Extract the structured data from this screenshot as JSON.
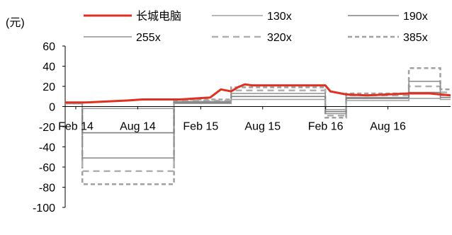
{
  "chart_data": {
    "type": "line",
    "unit_label": "(元)",
    "x_tick_labels": [
      "Feb 14",
      "Aug 14",
      "Feb 15",
      "Aug 15",
      "Feb 16",
      "Aug 16"
    ],
    "x_tick_dates": [
      "2014-02-01",
      "2014-08-01",
      "2015-02-01",
      "2015-08-01",
      "2016-02-01",
      "2016-08-01"
    ],
    "x_range": [
      "2014-01-01",
      "2017-01-31"
    ],
    "ylim": [
      -100,
      60
    ],
    "y_ticks": [
      -100,
      -80,
      -60,
      -40,
      -20,
      0,
      20,
      40,
      60
    ],
    "grid": false,
    "legend_position": "top",
    "series": [
      {
        "name": "长城电脑",
        "color": "#e03020",
        "style": "solid",
        "points": [
          [
            "2014-01-01",
            4
          ],
          [
            "2014-03-01",
            4
          ],
          [
            "2014-05-01",
            5
          ],
          [
            "2014-07-01",
            6
          ],
          [
            "2014-08-15",
            7
          ],
          [
            "2014-10-01",
            7
          ],
          [
            "2014-12-01",
            7
          ],
          [
            "2015-01-15",
            8
          ],
          [
            "2015-03-01",
            9
          ],
          [
            "2015-04-01",
            17
          ],
          [
            "2015-05-01",
            15
          ],
          [
            "2015-05-20",
            19
          ],
          [
            "2015-06-10",
            22
          ],
          [
            "2015-07-01",
            21
          ],
          [
            "2015-08-01",
            21
          ],
          [
            "2015-10-01",
            21
          ],
          [
            "2015-12-01",
            21
          ],
          [
            "2016-01-31",
            21
          ],
          [
            "2016-02-15",
            15
          ],
          [
            "2016-04-01",
            12
          ],
          [
            "2016-06-01",
            11
          ],
          [
            "2016-08-01",
            12
          ],
          [
            "2016-10-01",
            13
          ],
          [
            "2016-12-01",
            13
          ],
          [
            "2017-01-31",
            11
          ]
        ]
      },
      {
        "name": "130x",
        "color": "#a0a0a0",
        "style": "solid",
        "points": [
          [
            "2014-01-01",
            3
          ],
          [
            "2014-02-20",
            3
          ],
          [
            "2014-02-20",
            -2
          ],
          [
            "2014-11-15",
            -2
          ],
          [
            "2014-11-15",
            3
          ],
          [
            "2015-05-01",
            3
          ],
          [
            "2015-05-01",
            7
          ],
          [
            "2016-01-31",
            7
          ],
          [
            "2016-01-31",
            -3
          ],
          [
            "2016-04-01",
            -3
          ],
          [
            "2016-04-01",
            6
          ],
          [
            "2016-10-01",
            6
          ],
          [
            "2016-10-01",
            8
          ],
          [
            "2017-01-01",
            8
          ],
          [
            "2017-01-01",
            7
          ],
          [
            "2017-01-31",
            7
          ]
        ]
      },
      {
        "name": "190x",
        "color": "#808080",
        "style": "solid",
        "points": [
          [
            "2014-01-01",
            3
          ],
          [
            "2014-02-20",
            3
          ],
          [
            "2014-02-20",
            -26
          ],
          [
            "2014-11-15",
            -26
          ],
          [
            "2014-11-15",
            4
          ],
          [
            "2015-05-01",
            4
          ],
          [
            "2015-05-01",
            10
          ],
          [
            "2016-01-31",
            10
          ],
          [
            "2016-01-31",
            -5
          ],
          [
            "2016-04-01",
            -5
          ],
          [
            "2016-04-01",
            8
          ],
          [
            "2016-10-01",
            8
          ],
          [
            "2016-10-01",
            14
          ],
          [
            "2017-01-01",
            14
          ],
          [
            "2017-01-01",
            9
          ],
          [
            "2017-01-31",
            9
          ]
        ]
      },
      {
        "name": "255x",
        "color": "#909090",
        "style": "solid",
        "points": [
          [
            "2014-01-01",
            3
          ],
          [
            "2014-02-20",
            3
          ],
          [
            "2014-02-20",
            -51
          ],
          [
            "2014-11-15",
            -51
          ],
          [
            "2014-11-15",
            5
          ],
          [
            "2015-05-01",
            5
          ],
          [
            "2015-05-01",
            13
          ],
          [
            "2016-01-31",
            13
          ],
          [
            "2016-01-31",
            -7
          ],
          [
            "2016-04-01",
            -7
          ],
          [
            "2016-04-01",
            9
          ],
          [
            "2016-10-01",
            9
          ],
          [
            "2016-10-01",
            25
          ],
          [
            "2017-01-01",
            25
          ],
          [
            "2017-01-01",
            11
          ],
          [
            "2017-01-31",
            11
          ]
        ]
      },
      {
        "name": "320x",
        "color": "#b0b0b0",
        "style": "dashed",
        "points": [
          [
            "2014-01-01",
            3
          ],
          [
            "2014-02-20",
            3
          ],
          [
            "2014-02-20",
            -64
          ],
          [
            "2014-11-15",
            -64
          ],
          [
            "2014-11-15",
            6
          ],
          [
            "2015-05-01",
            6
          ],
          [
            "2015-05-01",
            16
          ],
          [
            "2016-01-31",
            16
          ],
          [
            "2016-01-31",
            -9
          ],
          [
            "2016-04-01",
            -9
          ],
          [
            "2016-04-01",
            11
          ],
          [
            "2016-10-01",
            11
          ],
          [
            "2016-10-01",
            20
          ],
          [
            "2017-01-01",
            20
          ],
          [
            "2017-01-01",
            14
          ],
          [
            "2017-01-31",
            14
          ]
        ]
      },
      {
        "name": "385x",
        "color": "#a0a0a0",
        "style": "dashed",
        "points": [
          [
            "2014-01-01",
            3
          ],
          [
            "2014-02-20",
            3
          ],
          [
            "2014-02-20",
            -77
          ],
          [
            "2014-11-15",
            -77
          ],
          [
            "2014-11-15",
            7
          ],
          [
            "2015-05-01",
            7
          ],
          [
            "2015-05-01",
            19
          ],
          [
            "2016-01-31",
            19
          ],
          [
            "2016-01-31",
            -11
          ],
          [
            "2016-04-01",
            -11
          ],
          [
            "2016-04-01",
            13
          ],
          [
            "2016-10-01",
            13
          ],
          [
            "2016-10-01",
            38
          ],
          [
            "2017-01-01",
            38
          ],
          [
            "2017-01-01",
            17
          ],
          [
            "2017-01-31",
            17
          ]
        ]
      }
    ]
  }
}
